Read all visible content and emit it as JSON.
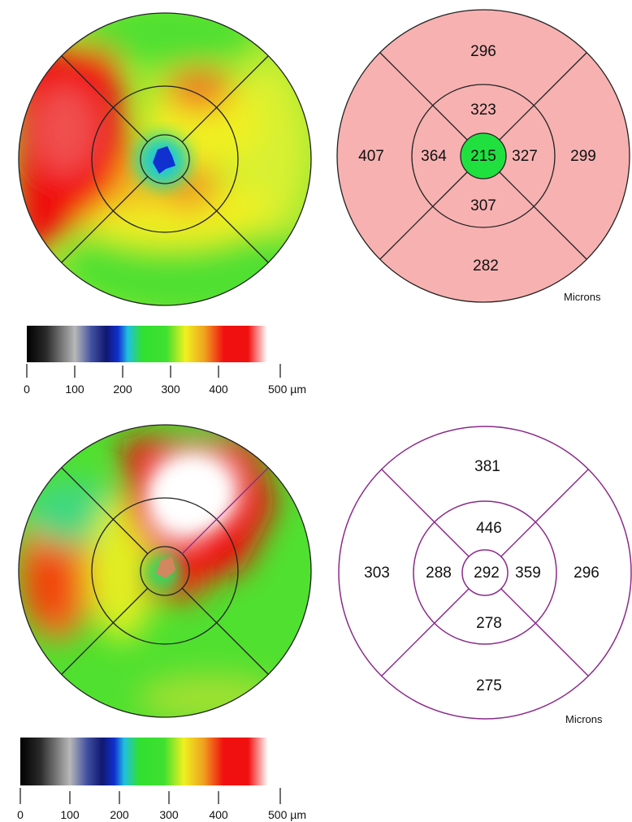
{
  "scan_1": {
    "etdrs_map": {
      "central": "215",
      "inner_superior": "323",
      "inner_nasal": "364",
      "inner_temporal": "327",
      "inner_inferior": "307",
      "outer_superior": "296",
      "outer_nasal": "407",
      "outer_temporal": "299",
      "outer_inferior": "282",
      "unit_label": "Microns",
      "fill_color": "#f7b1b1",
      "center_fill_color": "#20e040",
      "line_color": "#222222"
    },
    "color_scale": {
      "ticks": [
        "0",
        "100",
        "200",
        "300",
        "400",
        "500 µm"
      ]
    }
  },
  "scan_2": {
    "etdrs_map": {
      "central": "292",
      "inner_superior": "446",
      "inner_nasal": "288",
      "inner_temporal": "359",
      "inner_inferior": "278",
      "outer_superior": "381",
      "outer_nasal": "303",
      "outer_temporal": "296",
      "outer_inferior": "275",
      "unit_label": "Microns",
      "fill_color": "#ffffff",
      "line_color": "#8a2a8a"
    },
    "color_scale": {
      "ticks": [
        "0",
        "100",
        "200",
        "300",
        "400",
        "500 µm"
      ]
    }
  },
  "colors": {
    "scale_black": "#000000",
    "scale_gray": "#b8b8b8",
    "scale_navy": "#101870",
    "scale_blue": "#1030d0",
    "scale_cyan": "#20c0e0",
    "scale_green": "#30e030",
    "scale_yellow": "#f0f020",
    "scale_orange": "#f08020",
    "scale_red": "#f01010",
    "scale_white": "#ffffff"
  }
}
